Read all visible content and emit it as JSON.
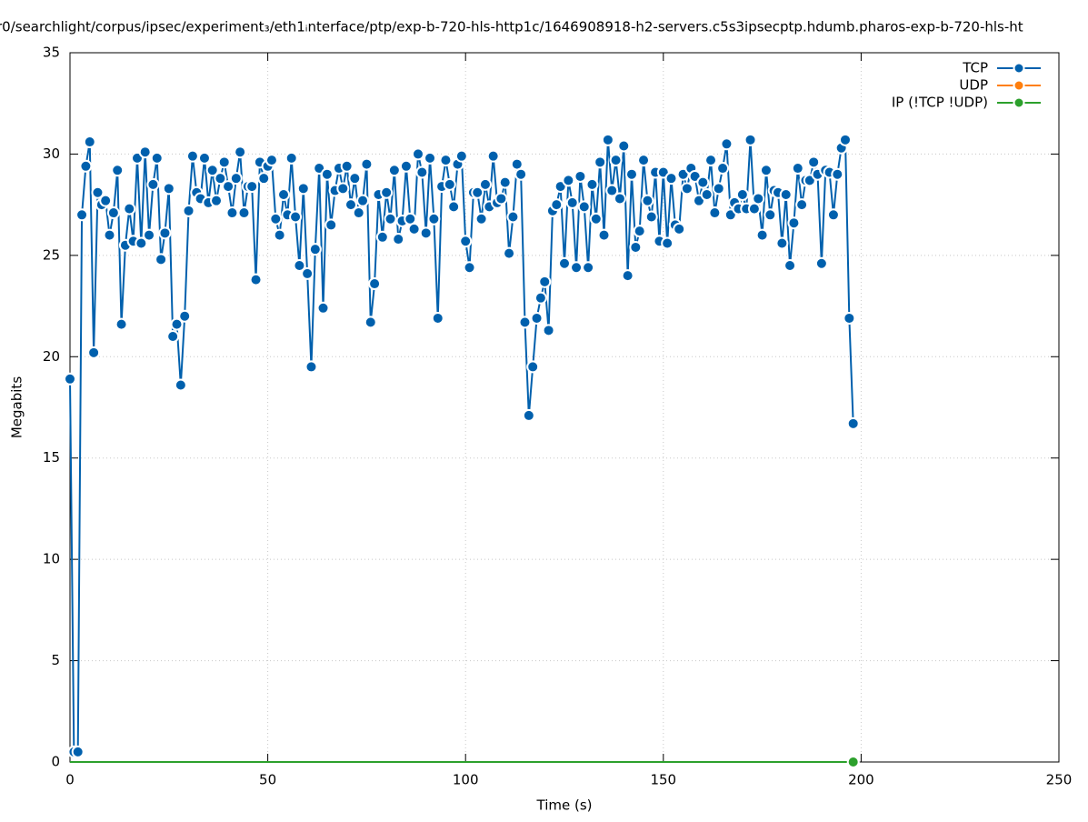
{
  "chart_data": {
    "type": "line",
    "title": "r0/searchlight/corpus/ipsec/experiment₃/eth1ᵢnterface/ptp/exp-b-720-hls-http1c/1646908918-h2-servers.c5s3ipsecptp.hdumb.pharos-exp-b-720-hls-ht",
    "xlabel": "Time (s)",
    "ylabel": "Megabits",
    "xlim": [
      0,
      250
    ],
    "xticks": [
      0,
      50,
      100,
      150,
      200,
      250
    ],
    "ylim": [
      0,
      35
    ],
    "yticks": [
      0,
      5,
      10,
      15,
      20,
      25,
      30,
      35
    ],
    "grid": true,
    "legend": "top-right",
    "x": [
      0,
      1,
      2,
      3,
      4,
      5,
      6,
      7,
      8,
      9,
      10,
      11,
      12,
      13,
      14,
      15,
      16,
      17,
      18,
      19,
      20,
      21,
      22,
      23,
      24,
      25,
      26,
      27,
      28,
      29,
      30,
      31,
      32,
      33,
      34,
      35,
      36,
      37,
      38,
      39,
      40,
      41,
      42,
      43,
      44,
      45,
      46,
      47,
      48,
      49,
      50,
      51,
      52,
      53,
      54,
      55,
      56,
      57,
      58,
      59,
      60,
      61,
      62,
      63,
      64,
      65,
      66,
      67,
      68,
      69,
      70,
      71,
      72,
      73,
      74,
      75,
      76,
      77,
      78,
      79,
      80,
      81,
      82,
      83,
      84,
      85,
      86,
      87,
      88,
      89,
      90,
      91,
      92,
      93,
      94,
      95,
      96,
      97,
      98,
      99,
      100,
      101,
      102,
      103,
      104,
      105,
      106,
      107,
      108,
      109,
      110,
      111,
      112,
      113,
      114,
      115,
      116,
      117,
      118,
      119,
      120,
      121,
      122,
      123,
      124,
      125,
      126,
      127,
      128,
      129,
      130,
      131,
      132,
      133,
      134,
      135,
      136,
      137,
      138,
      139,
      140,
      141,
      142,
      143,
      144,
      145,
      146,
      147,
      148,
      149,
      150,
      151,
      152,
      153,
      154,
      155,
      156,
      157,
      158,
      159,
      160,
      161,
      162,
      163,
      164,
      165,
      166,
      167,
      168,
      169,
      170,
      171,
      172,
      173,
      174,
      175,
      176,
      177,
      178,
      179,
      180,
      181,
      182,
      183,
      184,
      185,
      186,
      187,
      188,
      189,
      190,
      191,
      192,
      193,
      194,
      195,
      196,
      197,
      198
    ],
    "series": [
      {
        "name": "TCP",
        "color": "#0060ad",
        "markers": true,
        "values": [
          18.9,
          0.5,
          0.5,
          27.0,
          29.4,
          30.6,
          20.2,
          28.1,
          27.5,
          27.7,
          26.0,
          27.1,
          29.2,
          21.6,
          25.5,
          27.3,
          25.7,
          29.8,
          25.6,
          30.1,
          26.0,
          28.5,
          29.8,
          24.8,
          26.1,
          28.3,
          21.0,
          21.6,
          18.6,
          22.0,
          27.2,
          29.9,
          28.1,
          27.8,
          29.8,
          27.6,
          29.2,
          27.7,
          28.8,
          29.6,
          28.4,
          27.1,
          28.8,
          30.1,
          27.1,
          28.4,
          28.4,
          23.8,
          29.6,
          28.8,
          29.4,
          29.7,
          26.8,
          26.0,
          28.0,
          27.0,
          29.8,
          26.9,
          24.5,
          28.3,
          24.1,
          19.5,
          25.3,
          29.3,
          22.4,
          29.0,
          26.5,
          28.2,
          29.3,
          28.3,
          29.4,
          27.5,
          28.8,
          27.1,
          27.7,
          29.5,
          21.7,
          23.6,
          28.0,
          25.9,
          28.1,
          26.8,
          29.2,
          25.8,
          26.7,
          29.4,
          26.8,
          26.3,
          30.0,
          29.1,
          26.1,
          29.8,
          26.8,
          21.9,
          28.4,
          29.7,
          28.5,
          27.4,
          29.5,
          29.9,
          25.7,
          24.4,
          28.1,
          28.1,
          26.8,
          28.5,
          27.4,
          29.9,
          27.6,
          27.8,
          28.6,
          25.1,
          26.9,
          29.5,
          29.0,
          21.7,
          17.1,
          19.5,
          21.9,
          22.9,
          23.7,
          21.3,
          27.2,
          27.5,
          28.4,
          24.6,
          28.7,
          27.6,
          24.4,
          28.9,
          27.4,
          24.4,
          28.5,
          26.8,
          29.6,
          26.0,
          30.7,
          28.2,
          29.7,
          27.8,
          30.4,
          24.0,
          29.0,
          25.4,
          26.2,
          29.7,
          27.7,
          26.9,
          29.1,
          25.7,
          29.1,
          25.6,
          28.8,
          26.5,
          26.3,
          29.0,
          28.3,
          29.3,
          28.9,
          27.7,
          28.6,
          28.0,
          29.7,
          27.1,
          28.3,
          29.3,
          30.5,
          27.0,
          27.6,
          27.3,
          28.0,
          27.3,
          30.7,
          27.3,
          27.8,
          26.0,
          29.2,
          27.0,
          28.2,
          28.1,
          25.6,
          28.0,
          24.5,
          26.6,
          29.3,
          27.5,
          28.7,
          28.7,
          29.6,
          29.0,
          24.6,
          29.2,
          29.1,
          27.0,
          29.0,
          30.3,
          30.7,
          21.9,
          16.7
        ]
      },
      {
        "name": "UDP",
        "color": "#ff7f0e",
        "markers": false,
        "values": [
          0,
          0,
          0,
          0,
          0,
          0,
          0,
          0,
          0,
          0,
          0,
          0,
          0,
          0,
          0,
          0,
          0,
          0,
          0,
          0,
          0,
          0,
          0,
          0,
          0,
          0,
          0,
          0,
          0,
          0,
          0,
          0,
          0,
          0,
          0,
          0,
          0,
          0,
          0,
          0,
          0,
          0,
          0,
          0,
          0,
          0,
          0,
          0,
          0,
          0,
          0,
          0,
          0,
          0,
          0,
          0,
          0,
          0,
          0,
          0,
          0,
          0,
          0,
          0,
          0,
          0,
          0,
          0,
          0,
          0,
          0,
          0,
          0,
          0,
          0,
          0,
          0,
          0,
          0,
          0,
          0,
          0,
          0,
          0,
          0,
          0,
          0,
          0,
          0,
          0,
          0,
          0,
          0,
          0,
          0,
          0,
          0,
          0,
          0,
          0,
          0,
          0,
          0,
          0,
          0,
          0,
          0,
          0,
          0,
          0,
          0,
          0,
          0,
          0,
          0,
          0,
          0,
          0,
          0,
          0,
          0,
          0,
          0,
          0,
          0,
          0,
          0,
          0,
          0,
          0,
          0,
          0,
          0,
          0,
          0,
          0,
          0,
          0,
          0,
          0,
          0,
          0,
          0,
          0,
          0,
          0,
          0,
          0,
          0,
          0,
          0,
          0,
          0,
          0,
          0,
          0,
          0,
          0,
          0,
          0,
          0,
          0,
          0,
          0,
          0,
          0,
          0,
          0,
          0,
          0,
          0,
          0,
          0,
          0,
          0,
          0,
          0,
          0,
          0,
          0,
          0,
          0,
          0,
          0,
          0,
          0,
          0,
          0,
          0,
          0,
          0,
          0,
          0,
          0,
          0,
          0,
          0,
          0,
          0
        ]
      },
      {
        "name": "IP (!TCP  !UDP)",
        "color": "#2ca02c",
        "markers": false,
        "values": [
          0,
          0,
          0,
          0,
          0,
          0,
          0,
          0,
          0,
          0,
          0,
          0,
          0,
          0,
          0,
          0,
          0,
          0,
          0,
          0,
          0,
          0,
          0,
          0,
          0,
          0,
          0,
          0,
          0,
          0,
          0,
          0,
          0,
          0,
          0,
          0,
          0,
          0,
          0,
          0,
          0,
          0,
          0,
          0,
          0,
          0,
          0,
          0,
          0,
          0,
          0,
          0,
          0,
          0,
          0,
          0,
          0,
          0,
          0,
          0,
          0,
          0,
          0,
          0,
          0,
          0,
          0,
          0,
          0,
          0,
          0,
          0,
          0,
          0,
          0,
          0,
          0,
          0,
          0,
          0,
          0,
          0,
          0,
          0,
          0,
          0,
          0,
          0,
          0,
          0,
          0,
          0,
          0,
          0,
          0,
          0,
          0,
          0,
          0,
          0,
          0,
          0,
          0,
          0,
          0,
          0,
          0,
          0,
          0,
          0,
          0,
          0,
          0,
          0,
          0,
          0,
          0,
          0,
          0,
          0,
          0,
          0,
          0,
          0,
          0,
          0,
          0,
          0,
          0,
          0,
          0,
          0,
          0,
          0,
          0,
          0,
          0,
          0,
          0,
          0,
          0,
          0,
          0,
          0,
          0,
          0,
          0,
          0,
          0,
          0,
          0,
          0,
          0,
          0,
          0,
          0,
          0,
          0,
          0,
          0,
          0,
          0,
          0,
          0,
          0,
          0,
          0,
          0,
          0,
          0,
          0,
          0,
          0,
          0,
          0,
          0,
          0,
          0,
          0,
          0,
          0,
          0,
          0,
          0,
          0,
          0,
          0,
          0,
          0,
          0,
          0,
          0,
          0,
          0,
          0,
          0,
          0,
          0,
          0
        ]
      }
    ]
  }
}
